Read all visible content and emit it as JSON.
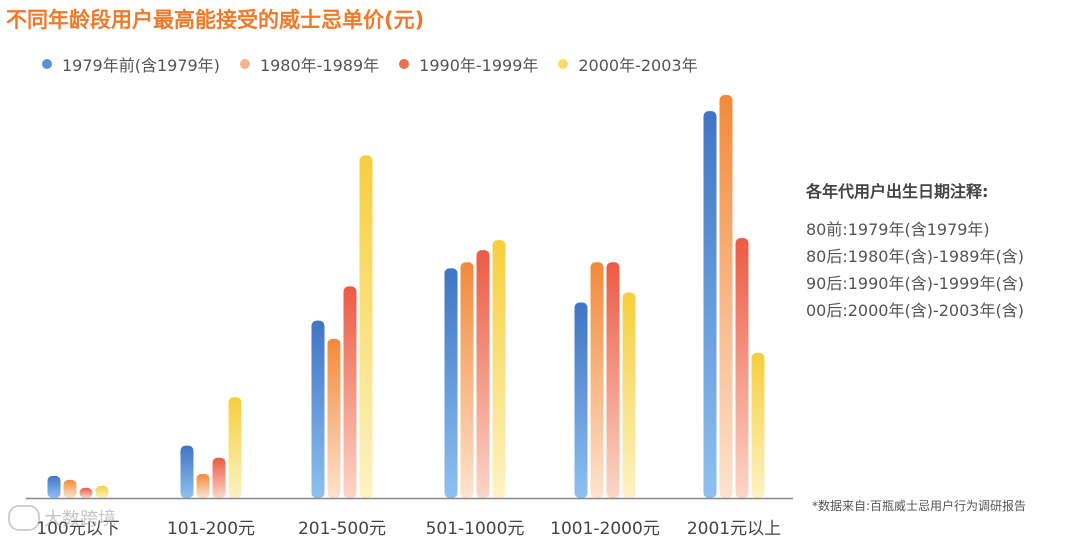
{
  "title": "不同年龄段用户最高能接受的威士忌单价(元)",
  "legend": [
    {
      "label": "1979年前(含1979年)",
      "color": "#5b8fdc"
    },
    {
      "label": "1980年-1989年",
      "color": "#f6b58c"
    },
    {
      "label": "1990年-1999年",
      "color": "#ef6f52"
    },
    {
      "label": "2000年-2003年",
      "color": "#f7dc6a"
    }
  ],
  "notes": {
    "title": "各年代用户出生日期注释:",
    "lines": [
      "80前:1979年(含1979年)",
      "80后:1980年(含)-1989年(含)",
      "90后:1990年(含)-1999年(含)",
      "00后:2000年(含)-2003年(含)"
    ]
  },
  "source": "*数据来自:百瓶威士忌用户行为调研报告",
  "watermark": "大数跨境",
  "chart_data": {
    "type": "bar",
    "categories": [
      "100元以下",
      "101-200元",
      "201-500元",
      "501-1000元",
      "1001-2000元",
      "2001元以上"
    ],
    "series": [
      {
        "name": "1979年前(含1979年)",
        "values": [
          5.5,
          13.0,
          44.0,
          57.0,
          48.5,
          96.0
        ]
      },
      {
        "name": "1980年-1989年",
        "values": [
          4.5,
          6.0,
          39.5,
          58.5,
          58.5,
          100.0
        ]
      },
      {
        "name": "1990年-1999年",
        "values": [
          2.5,
          10.0,
          52.5,
          61.5,
          58.5,
          64.5
        ]
      },
      {
        "name": "2000年-2003年",
        "values": [
          3.0,
          25.0,
          85.0,
          64.0,
          51.0,
          36.0
        ]
      }
    ],
    "ylim": [
      0,
      100
    ],
    "grid": false,
    "legend_position": "top-left",
    "colors": {
      "series_tops": [
        "#3f75c4",
        "#f28a3a",
        "#ec5a44",
        "#f6cf3d"
      ],
      "series_bottoms": [
        "#8fc0f2",
        "#fde3cf",
        "#fcd6c7",
        "#fdf3c4"
      ]
    }
  }
}
